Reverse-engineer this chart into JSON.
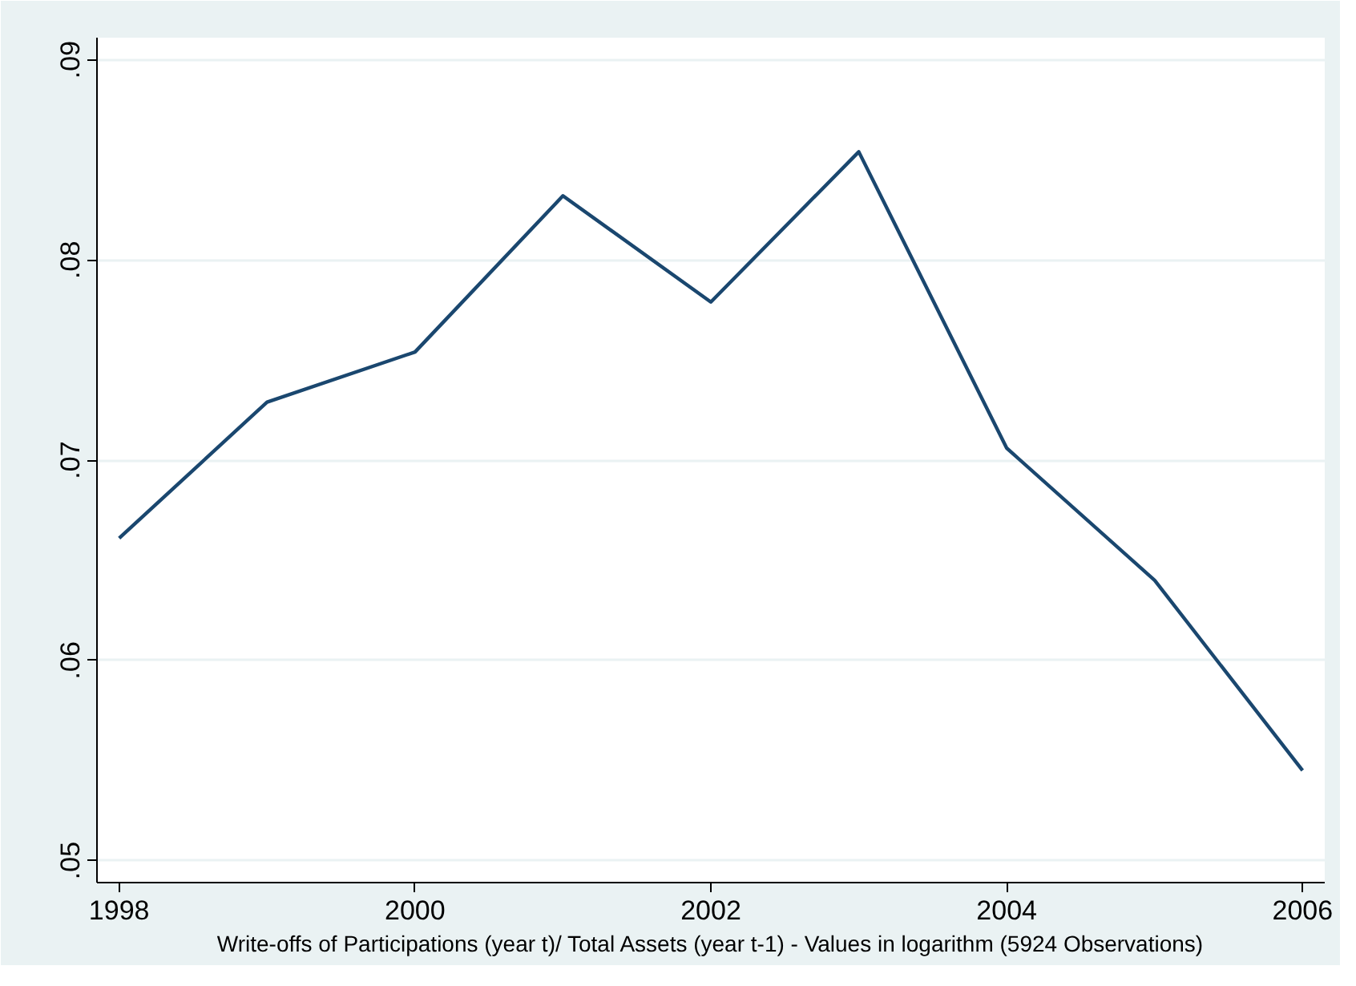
{
  "chart_data": {
    "type": "line",
    "xlabel": "Write-offs of Participations (year t)/ Total Assets (year t-1) - Values in logarithm (5924 Observations)",
    "x": [
      1998,
      1999,
      2000,
      2001,
      2002,
      2003,
      2004,
      2005,
      2006
    ],
    "series": [
      {
        "color": "#1a476f",
        "values": [
          0.0661,
          0.0729,
          0.0754,
          0.0832,
          0.0779,
          0.0854,
          0.0706,
          0.064,
          0.0545
        ]
      }
    ],
    "xlim": [
      1997.85,
      2006.15
    ],
    "ylim": [
      0.0489,
      0.0911
    ],
    "xticks": [
      1998,
      2000,
      2002,
      2004,
      2006
    ],
    "yticks": [
      {
        "value": 0.05,
        "label": ".05"
      },
      {
        "value": 0.06,
        "label": ".06"
      },
      {
        "value": 0.07,
        "label": ".07"
      },
      {
        "value": 0.08,
        "label": ".08"
      },
      {
        "value": 0.09,
        "label": ".09"
      }
    ],
    "grid": "y",
    "marker": "none",
    "line_style": "solid"
  }
}
